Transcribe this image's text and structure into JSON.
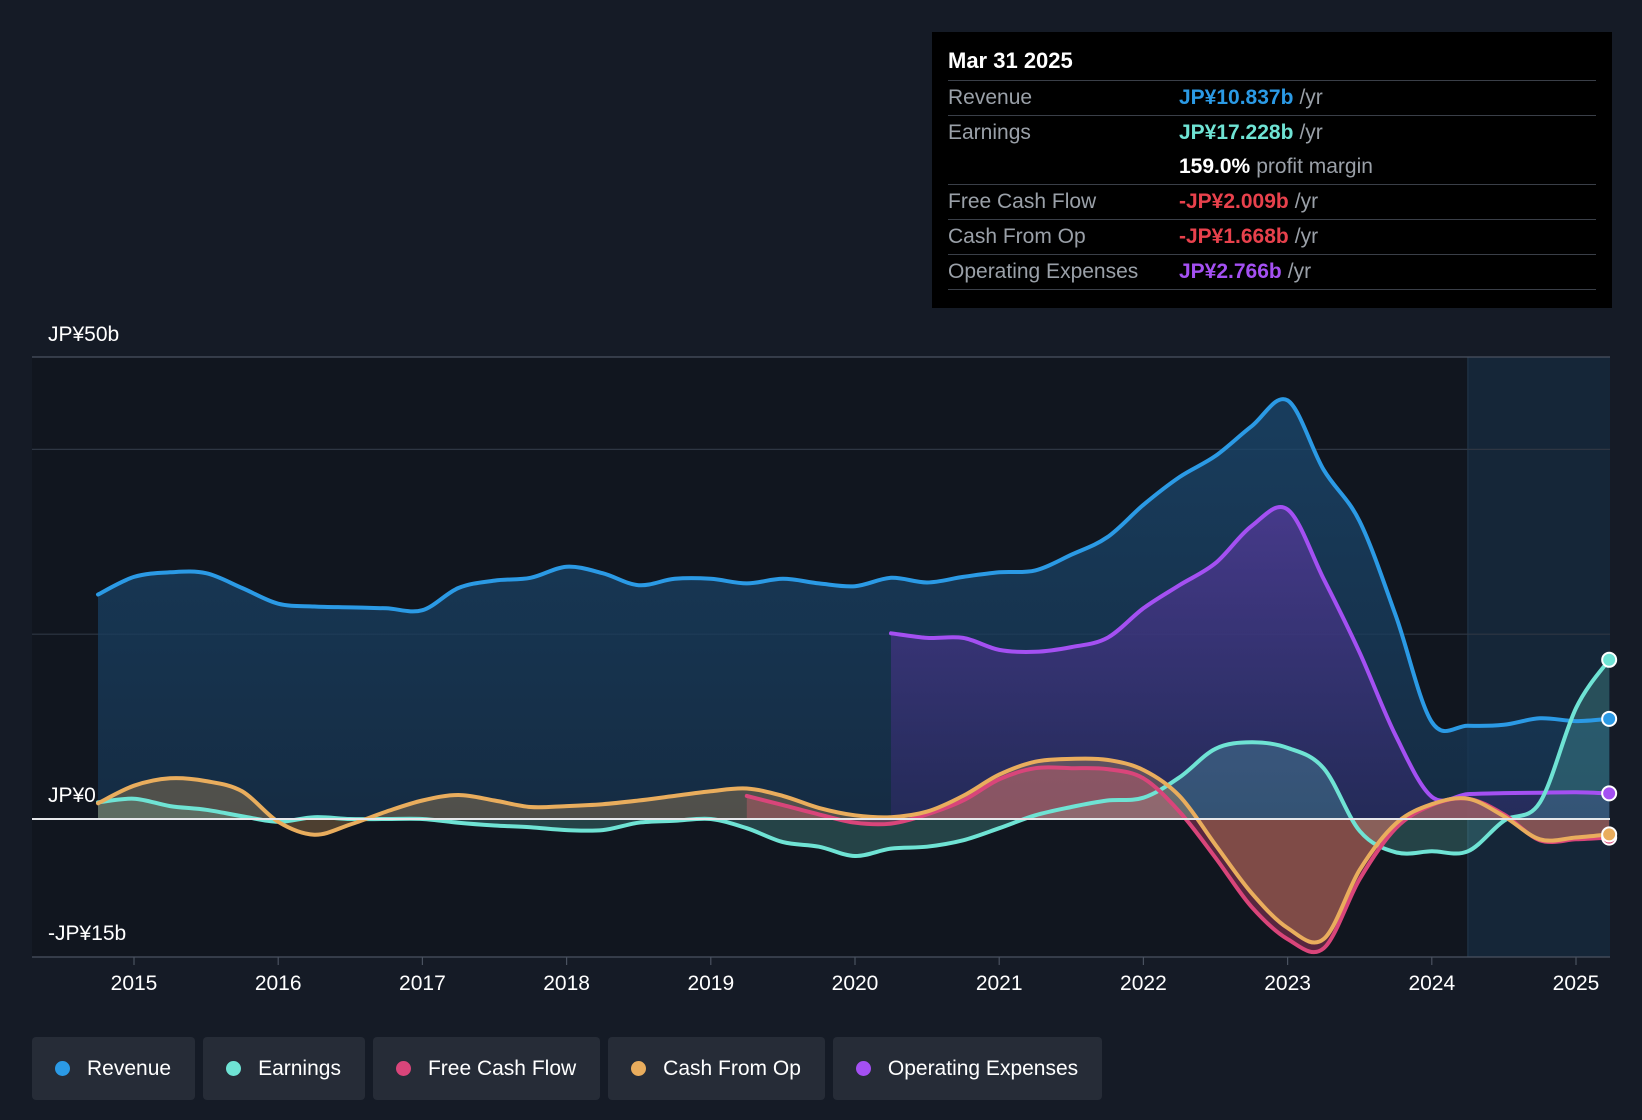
{
  "tooltip": {
    "date": "Mar 31 2025",
    "rows": [
      {
        "label": "Revenue",
        "value": "JP¥10.837b",
        "unit": "/yr",
        "color": "#2b9ae5"
      },
      {
        "label": "Earnings",
        "value": "JP¥17.228b",
        "unit": "/yr",
        "color": "#6fe3d4"
      },
      {
        "label": "",
        "value": "159.0%",
        "unit": "profit margin",
        "color": "#ffffff"
      },
      {
        "label": "Free Cash Flow",
        "value": "-JP¥2.009b",
        "unit": "/yr",
        "color": "#e8414c"
      },
      {
        "label": "Cash From Op",
        "value": "-JP¥1.668b",
        "unit": "/yr",
        "color": "#e8414c"
      },
      {
        "label": "Operating Expenses",
        "value": "JP¥2.766b",
        "unit": "/yr",
        "color": "#a450f2"
      }
    ]
  },
  "legend": [
    {
      "label": "Revenue",
      "color": "#2b9ae5"
    },
    {
      "label": "Earnings",
      "color": "#6fe3d4"
    },
    {
      "label": "Free Cash Flow",
      "color": "#d9457a"
    },
    {
      "label": "Cash From Op",
      "color": "#e9ad5d"
    },
    {
      "label": "Operating Expenses",
      "color": "#a450f2"
    }
  ],
  "chart_data": {
    "type": "line",
    "title": "",
    "ylabel": "",
    "xlabel": "",
    "y_tick_labels": [
      "JP¥50b",
      "JP¥0",
      "-JP¥15b"
    ],
    "ylim": [
      -15,
      50
    ],
    "xlim": [
      2014.0,
      2025.23
    ],
    "x_ticks": [
      2015,
      2016,
      2017,
      2018,
      2019,
      2020,
      2021,
      2022,
      2023,
      2024,
      2025
    ],
    "grid": true,
    "series": [
      {
        "name": "Revenue",
        "color": "#2b9ae5",
        "fill": true,
        "x": [
          2014.75,
          2015.0,
          2015.25,
          2015.5,
          2015.75,
          2016.0,
          2016.25,
          2016.5,
          2016.75,
          2017.0,
          2017.25,
          2017.5,
          2017.75,
          2018.0,
          2018.25,
          2018.5,
          2018.75,
          2019.0,
          2019.25,
          2019.5,
          2019.75,
          2020.0,
          2020.25,
          2020.5,
          2020.75,
          2021.0,
          2021.25,
          2021.5,
          2021.75,
          2022.0,
          2022.25,
          2022.5,
          2022.75,
          2023.0,
          2023.25,
          2023.5,
          2023.75,
          2024.0,
          2024.25,
          2024.5,
          2024.75,
          2025.0,
          2025.23
        ],
        "y": [
          24.3,
          26.2,
          26.7,
          26.6,
          25.0,
          23.3,
          23.0,
          22.9,
          22.8,
          22.6,
          25.0,
          25.8,
          26.1,
          27.3,
          26.6,
          25.3,
          26.0,
          26.0,
          25.5,
          26.0,
          25.5,
          25.2,
          26.1,
          25.6,
          26.2,
          26.7,
          26.9,
          28.6,
          30.5,
          34.0,
          37.0,
          39.3,
          42.5,
          45.3,
          37.8,
          32.2,
          22.0,
          10.5,
          10.1,
          10.2,
          10.9,
          10.6,
          10.84
        ]
      },
      {
        "name": "Earnings",
        "color": "#6fe3d4",
        "fill": true,
        "x": [
          2014.75,
          2015.0,
          2015.25,
          2015.5,
          2015.75,
          2016.0,
          2016.25,
          2016.5,
          2016.75,
          2017.0,
          2017.25,
          2017.5,
          2017.75,
          2018.0,
          2018.25,
          2018.5,
          2018.75,
          2019.0,
          2019.25,
          2019.5,
          2019.75,
          2020.0,
          2020.25,
          2020.5,
          2020.75,
          2021.0,
          2021.25,
          2021.5,
          2021.75,
          2022.0,
          2022.25,
          2022.5,
          2022.75,
          2023.0,
          2023.25,
          2023.5,
          2023.75,
          2024.0,
          2024.25,
          2024.5,
          2024.75,
          2025.0,
          2025.23
        ],
        "y": [
          1.8,
          2.2,
          1.4,
          1.0,
          0.3,
          -0.3,
          0.2,
          0.0,
          0.0,
          0.0,
          -0.4,
          -0.7,
          -0.9,
          -1.2,
          -1.2,
          -0.4,
          -0.2,
          0.0,
          -1.0,
          -2.5,
          -3.0,
          -4.0,
          -3.2,
          -3.0,
          -2.3,
          -1.0,
          0.4,
          1.3,
          2.0,
          2.3,
          4.5,
          7.6,
          8.3,
          7.7,
          5.5,
          -1.3,
          -3.6,
          -3.5,
          -3.5,
          -0.2,
          1.8,
          12.0,
          17.23
        ]
      },
      {
        "name": "Free Cash Flow",
        "color": "#d9457a",
        "fill": true,
        "x": [
          2019.25,
          2019.5,
          2019.75,
          2020.0,
          2020.25,
          2020.5,
          2020.75,
          2021.0,
          2021.25,
          2021.5,
          2021.75,
          2022.0,
          2022.25,
          2022.5,
          2022.75,
          2023.0,
          2023.25,
          2023.5,
          2023.75,
          2024.0,
          2024.25,
          2024.5,
          2024.75,
          2025.0,
          2025.23
        ],
        "y": [
          2.5,
          1.5,
          0.5,
          -0.4,
          -0.5,
          0.5,
          2.0,
          4.3,
          5.5,
          5.5,
          5.4,
          4.4,
          0.8,
          -4.2,
          -9.5,
          -13.0,
          -14.0,
          -6.5,
          -1.0,
          1.5,
          2.2,
          0.5,
          -2.3,
          -2.2,
          -2.01
        ]
      },
      {
        "name": "Cash From Op",
        "color": "#e9ad5d",
        "fill": true,
        "x": [
          2014.75,
          2015.0,
          2015.25,
          2015.5,
          2015.75,
          2016.0,
          2016.25,
          2016.5,
          2016.75,
          2017.0,
          2017.25,
          2017.5,
          2017.75,
          2018.0,
          2018.25,
          2018.5,
          2018.75,
          2019.0,
          2019.25,
          2019.5,
          2019.75,
          2020.0,
          2020.25,
          2020.5,
          2020.75,
          2021.0,
          2021.25,
          2021.5,
          2021.75,
          2022.0,
          2022.25,
          2022.5,
          2022.75,
          2023.0,
          2023.25,
          2023.5,
          2023.75,
          2024.0,
          2024.25,
          2024.5,
          2024.75,
          2025.0,
          2025.23
        ],
        "y": [
          1.7,
          3.6,
          4.4,
          4.1,
          3.0,
          -0.3,
          -1.7,
          -0.6,
          0.8,
          2.0,
          2.6,
          2.0,
          1.3,
          1.4,
          1.6,
          2.0,
          2.5,
          3.0,
          3.3,
          2.5,
          1.2,
          0.4,
          0.2,
          0.8,
          2.5,
          4.8,
          6.2,
          6.5,
          6.4,
          5.3,
          2.5,
          -2.8,
          -8.0,
          -11.8,
          -13.0,
          -5.5,
          -0.5,
          1.6,
          2.2,
          0.3,
          -2.2,
          -2.0,
          -1.67
        ]
      },
      {
        "name": "Operating Expenses",
        "color": "#a450f2",
        "fill": true,
        "x": [
          2020.25,
          2020.5,
          2020.75,
          2021.0,
          2021.25,
          2021.5,
          2021.75,
          2022.0,
          2022.25,
          2022.5,
          2022.75,
          2023.0,
          2023.25,
          2023.5,
          2023.75,
          2024.0,
          2024.25,
          2024.5,
          2024.75,
          2025.0,
          2025.23
        ],
        "y": [
          20.1,
          19.6,
          19.6,
          18.3,
          18.1,
          18.6,
          19.6,
          22.8,
          25.3,
          27.7,
          31.7,
          33.5,
          26.0,
          18.0,
          9.0,
          2.4,
          2.7,
          2.8,
          2.85,
          2.9,
          2.77
        ]
      }
    ]
  }
}
